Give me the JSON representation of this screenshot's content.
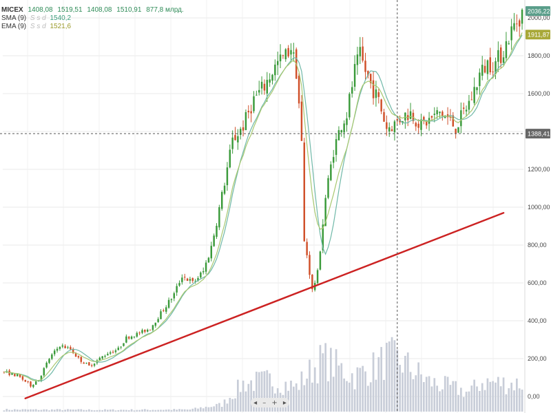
{
  "legend": {
    "ticker": "MICEX",
    "open": "1408,08",
    "high": "1519,51",
    "low": "1408,08",
    "close": "1510,91",
    "volume": "877,8 млрд.",
    "sma_label": "SMA (9)",
    "sma_value": "1540,2",
    "ema_label": "EMA (9)",
    "ema_value": "1521,6",
    "meta": "S s d"
  },
  "controls": [
    "◂",
    "–",
    "+",
    "▸"
  ],
  "colors": {
    "up": "#3a9a3a",
    "down": "#d0502a",
    "sma": "#6fb8a8",
    "ema": "#a8c870",
    "volume": "#c8cdd8",
    "trendline": "#cc2222",
    "grid": "#e8e8e8",
    "last_price_badge": "#5a9e8a",
    "sma_badge": "#a8a838",
    "crosshair_badge": "#666666"
  },
  "chart_data": {
    "type": "candlestick",
    "title": "",
    "xlabel": "",
    "ylabel": "",
    "ylim": [
      0,
      2100
    ],
    "ytick_labels": [
      "0,00",
      "200,00",
      "400,00",
      "600,00",
      "800,00",
      "1000,00",
      "1200,00",
      "1400,00",
      "1600,00",
      "1800,00",
      "2000,00"
    ],
    "ytick_values": [
      0,
      200,
      400,
      600,
      800,
      1000,
      1200,
      1400,
      1600,
      1800,
      2000
    ],
    "grid": true,
    "price_anchors": [
      [
        0,
        130
      ],
      [
        5,
        110
      ],
      [
        10,
        60
      ],
      [
        13,
        90
      ],
      [
        17,
        200
      ],
      [
        21,
        270
      ],
      [
        25,
        250
      ],
      [
        28,
        200
      ],
      [
        32,
        160
      ],
      [
        36,
        200
      ],
      [
        39,
        230
      ],
      [
        43,
        250
      ],
      [
        46,
        310
      ],
      [
        50,
        330
      ],
      [
        55,
        360
      ],
      [
        60,
        460
      ],
      [
        64,
        540
      ],
      [
        67,
        640
      ],
      [
        71,
        600
      ],
      [
        75,
        660
      ],
      [
        78,
        790
      ],
      [
        82,
        1060
      ],
      [
        86,
        1350
      ],
      [
        90,
        1430
      ],
      [
        94,
        1570
      ],
      [
        98,
        1640
      ],
      [
        101,
        1720
      ],
      [
        103,
        1760
      ],
      [
        106,
        1800
      ],
      [
        108,
        1850
      ],
      [
        110,
        1720
      ],
      [
        112,
        1380
      ],
      [
        114,
        750
      ],
      [
        116,
        560
      ],
      [
        118,
        650
      ],
      [
        121,
        1050
      ],
      [
        124,
        1300
      ],
      [
        127,
        1440
      ],
      [
        129,
        1490
      ],
      [
        132,
        1720
      ],
      [
        134,
        1800
      ],
      [
        136,
        1720
      ],
      [
        138,
        1650
      ],
      [
        141,
        1560
      ],
      [
        144,
        1420
      ],
      [
        147,
        1440
      ],
      [
        150,
        1480
      ],
      [
        153,
        1500
      ],
      [
        157,
        1430
      ],
      [
        161,
        1470
      ],
      [
        164,
        1500
      ],
      [
        167,
        1470
      ],
      [
        170,
        1420
      ],
      [
        173,
        1500
      ],
      [
        176,
        1580
      ],
      [
        179,
        1700
      ],
      [
        182,
        1760
      ],
      [
        185,
        1760
      ],
      [
        188,
        1830
      ],
      [
        190,
        1900
      ],
      [
        192,
        1960
      ],
      [
        195,
        2030
      ]
    ],
    "candle_count": 196,
    "volume_profile": [
      [
        0,
        12
      ],
      [
        40,
        10
      ],
      [
        70,
        12
      ],
      [
        82,
        40
      ],
      [
        90,
        160
      ],
      [
        100,
        180
      ],
      [
        110,
        140
      ],
      [
        114,
        210
      ],
      [
        120,
        300
      ],
      [
        126,
        250
      ],
      [
        132,
        200
      ],
      [
        140,
        260
      ],
      [
        145,
        310
      ],
      [
        150,
        280
      ],
      [
        160,
        170
      ],
      [
        170,
        130
      ],
      [
        175,
        110
      ],
      [
        180,
        170
      ],
      [
        190,
        160
      ],
      [
        195,
        160
      ]
    ],
    "trendline": {
      "start": {
        "index": 8,
        "price": -10
      },
      "end": {
        "index": 188,
        "price": 970
      }
    },
    "crosshair": {
      "index": 148,
      "price": 1388.41,
      "label": "1388,41"
    },
    "last_price": {
      "price": 2036.22,
      "label": "2036,22"
    },
    "sma_last": {
      "price": 1911.87,
      "label": "1911,87"
    }
  }
}
